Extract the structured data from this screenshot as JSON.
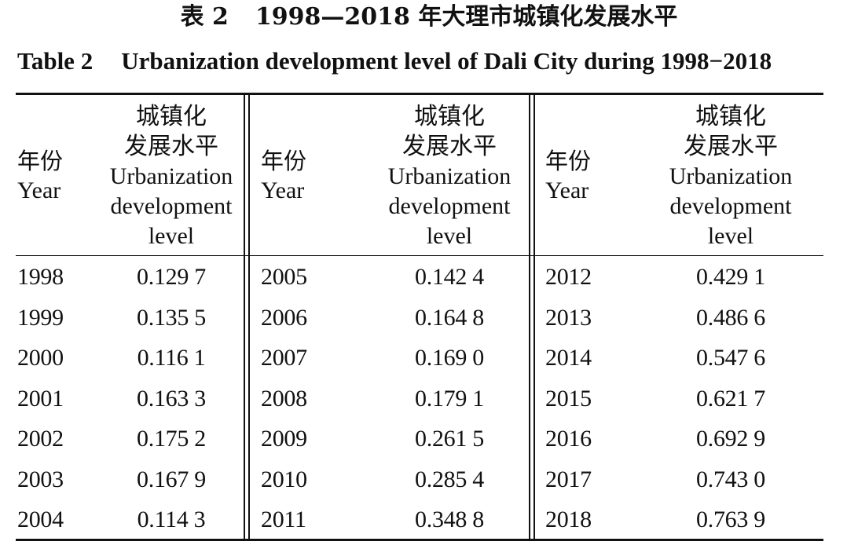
{
  "title_cn": {
    "label": "表 2",
    "text": "1998—2018 年大理市城镇化发展水平"
  },
  "title_en": {
    "label": "Table 2",
    "text": "Urbanization development level of Dali City during 1998−2018"
  },
  "header": {
    "year_cn": "年份",
    "year_en": "Year",
    "level_cn_line1": "城镇化",
    "level_cn_line2": "发展水平",
    "level_en_line1": "Urbanization",
    "level_en_line2": "development",
    "level_en_line3": "level"
  },
  "groups": [
    {
      "rows": [
        {
          "year": "1998",
          "value": "0.129 7"
        },
        {
          "year": "1999",
          "value": "0.135 5"
        },
        {
          "year": "2000",
          "value": "0.116 1"
        },
        {
          "year": "2001",
          "value": "0.163 3"
        },
        {
          "year": "2002",
          "value": "0.175 2"
        },
        {
          "year": "2003",
          "value": "0.167 9"
        },
        {
          "year": "2004",
          "value": "0.114 3"
        }
      ]
    },
    {
      "rows": [
        {
          "year": "2005",
          "value": "0.142 4"
        },
        {
          "year": "2006",
          "value": "0.164 8"
        },
        {
          "year": "2007",
          "value": "0.169 0"
        },
        {
          "year": "2008",
          "value": "0.179 1"
        },
        {
          "year": "2009",
          "value": "0.261 5"
        },
        {
          "year": "2010",
          "value": "0.285 4"
        },
        {
          "year": "2011",
          "value": "0.348 8"
        }
      ]
    },
    {
      "rows": [
        {
          "year": "2012",
          "value": "0.429 1"
        },
        {
          "year": "2013",
          "value": "0.486 6"
        },
        {
          "year": "2014",
          "value": "0.547 6"
        },
        {
          "year": "2015",
          "value": "0.621 7"
        },
        {
          "year": "2016",
          "value": "0.692 9"
        },
        {
          "year": "2017",
          "value": "0.743 0"
        },
        {
          "year": "2018",
          "value": "0.763 9"
        }
      ]
    }
  ]
}
